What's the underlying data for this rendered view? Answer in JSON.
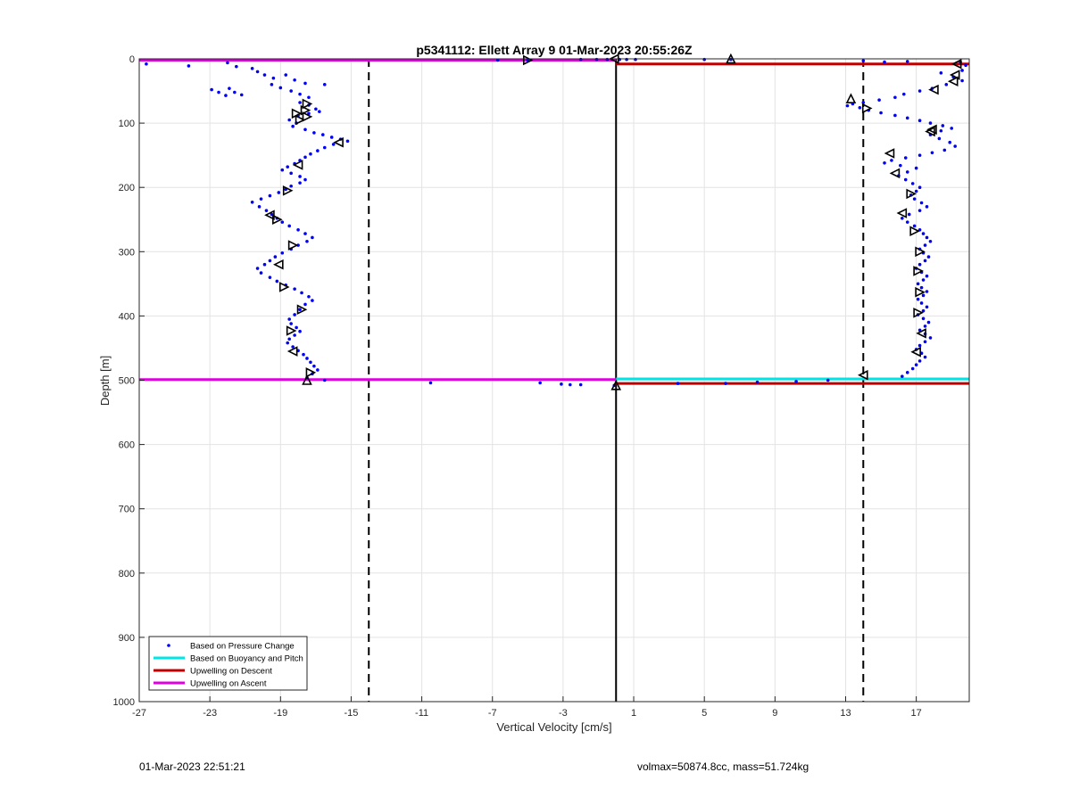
{
  "chart_data": {
    "type": "scatter",
    "title": "p5341112: Ellett Array 9 01-Mar-2023 20:55:26Z",
    "xlabel": "Vertical Velocity [cm/s]",
    "ylabel": "Depth [m]",
    "xlim": [
      -27,
      20
    ],
    "ylim": [
      0,
      1000
    ],
    "y_reversed": true,
    "grid": true,
    "x_ticks": [
      -27,
      -23,
      -19,
      -15,
      -11,
      -7,
      -3,
      1,
      5,
      9,
      13,
      17
    ],
    "x_tick_labels": [
      "-27",
      "-23",
      "-19",
      "-15",
      "-11",
      "-7",
      "-3",
      "1",
      "5",
      "9",
      "13",
      "17"
    ],
    "y_ticks": [
      0,
      100,
      200,
      300,
      400,
      500,
      600,
      700,
      800,
      900,
      1000
    ],
    "y_tick_labels": [
      "0",
      "100",
      "200",
      "300",
      "400",
      "500",
      "600",
      "700",
      "800",
      "900",
      "1000"
    ],
    "legend": {
      "position": "bottom-left",
      "entries": [
        {
          "label": "Based on Pressure Change",
          "style": "dot",
          "color": "#0000ff"
        },
        {
          "label": "Based on Buoyancy and Pitch",
          "style": "line",
          "color": "#00e5e5"
        },
        {
          "label": "Upwelling on Descent",
          "style": "line",
          "color": "#c00000"
        },
        {
          "label": "Upwelling on Ascent",
          "style": "line",
          "color": "#e000e0"
        }
      ]
    },
    "reference_lines": [
      {
        "x": -14,
        "style": "dashed",
        "color": "#000000"
      },
      {
        "x": 14,
        "style": "dashed",
        "color": "#000000"
      },
      {
        "x": 0,
        "style": "solid",
        "color": "#000000"
      }
    ],
    "series": [
      {
        "name": "Based on Pressure Change",
        "style": "dot",
        "color": "#0000ff",
        "points": [
          [
            -26.6,
            8
          ],
          [
            -24.2,
            11
          ],
          [
            -22,
            6
          ],
          [
            -21.5,
            12
          ],
          [
            -20.6,
            15
          ],
          [
            -20.3,
            20
          ],
          [
            -19.9,
            25
          ],
          [
            -19.4,
            30
          ],
          [
            -18.7,
            25
          ],
          [
            -18.2,
            33
          ],
          [
            -17.6,
            38
          ],
          [
            -16.5,
            40
          ],
          [
            -22.9,
            48
          ],
          [
            -22.5,
            52
          ],
          [
            -22.1,
            57
          ],
          [
            -21.9,
            46
          ],
          [
            -21.6,
            52
          ],
          [
            -21.2,
            56
          ],
          [
            -19.5,
            40
          ],
          [
            -19.0,
            45
          ],
          [
            -18.4,
            50
          ],
          [
            -17.9,
            55
          ],
          [
            -17.4,
            60
          ],
          [
            -17.9,
            68
          ],
          [
            -17.4,
            72
          ],
          [
            -17.0,
            78
          ],
          [
            -16.8,
            82
          ],
          [
            -17.4,
            85
          ],
          [
            -18.0,
            88
          ],
          [
            -18.5,
            95
          ],
          [
            -18.1,
            100
          ],
          [
            -18.3,
            105
          ],
          [
            -17.6,
            110
          ],
          [
            -17.1,
            115
          ],
          [
            -16.6,
            118
          ],
          [
            -16.1,
            122
          ],
          [
            -15.6,
            125
          ],
          [
            -15.2,
            128
          ],
          [
            -16.0,
            133
          ],
          [
            -16.5,
            138
          ],
          [
            -16.9,
            143
          ],
          [
            -17.3,
            148
          ],
          [
            -17.6,
            153
          ],
          [
            -17.9,
            158
          ],
          [
            -18.2,
            163
          ],
          [
            -18.6,
            168
          ],
          [
            -18.9,
            173
          ],
          [
            -18.4,
            178
          ],
          [
            -17.9,
            183
          ],
          [
            -17.6,
            188
          ],
          [
            -17.9,
            193
          ],
          [
            -18.4,
            198
          ],
          [
            -18.7,
            203
          ],
          [
            -19.1,
            208
          ],
          [
            -19.6,
            213
          ],
          [
            -20.1,
            218
          ],
          [
            -20.6,
            223
          ],
          [
            -20.2,
            230
          ],
          [
            -19.8,
            236
          ],
          [
            -19.5,
            242
          ],
          [
            -19.2,
            248
          ],
          [
            -18.9,
            254
          ],
          [
            -18.5,
            260
          ],
          [
            -18.0,
            266
          ],
          [
            -17.6,
            272
          ],
          [
            -17.2,
            278
          ],
          [
            -17.5,
            284
          ],
          [
            -18.0,
            290
          ],
          [
            -18.4,
            296
          ],
          [
            -18.9,
            302
          ],
          [
            -19.3,
            308
          ],
          [
            -19.6,
            314
          ],
          [
            -19.9,
            320
          ],
          [
            -20.3,
            326
          ],
          [
            -20.1,
            333
          ],
          [
            -19.6,
            340
          ],
          [
            -19.2,
            346
          ],
          [
            -18.7,
            352
          ],
          [
            -18.2,
            358
          ],
          [
            -17.8,
            364
          ],
          [
            -17.4,
            370
          ],
          [
            -17.2,
            376
          ],
          [
            -17.6,
            382
          ],
          [
            -17.9,
            390
          ],
          [
            -18.2,
            398
          ],
          [
            -18.5,
            405
          ],
          [
            -18.4,
            412
          ],
          [
            -18.1,
            418
          ],
          [
            -17.9,
            424
          ],
          [
            -18.2,
            430
          ],
          [
            -18.5,
            436
          ],
          [
            -18.6,
            442
          ],
          [
            -18.3,
            448
          ],
          [
            -18.0,
            454
          ],
          [
            -17.7,
            460
          ],
          [
            -17.5,
            466
          ],
          [
            -17.3,
            472
          ],
          [
            -17.1,
            478
          ],
          [
            -16.9,
            484
          ],
          [
            -17.2,
            490
          ],
          [
            -17.5,
            496
          ],
          [
            -16.5,
            500
          ],
          [
            -10.5,
            504
          ],
          [
            -4.3,
            504
          ],
          [
            -3.1,
            506
          ],
          [
            -2.6,
            507
          ],
          [
            -2.0,
            507
          ],
          [
            -0.1,
            508
          ],
          [
            -6.7,
            2
          ],
          [
            -5.0,
            2
          ],
          [
            -2.0,
            1
          ],
          [
            -1.1,
            1
          ],
          [
            -0.5,
            1
          ],
          [
            0.2,
            1
          ],
          [
            0.6,
            1
          ],
          [
            1.1,
            1
          ],
          [
            5.0,
            1
          ],
          [
            6.5,
            1
          ],
          [
            3.5,
            505
          ],
          [
            6.2,
            505
          ],
          [
            8.0,
            503
          ],
          [
            10.2,
            502
          ],
          [
            12.0,
            500
          ],
          [
            14.0,
            3
          ],
          [
            15.2,
            5
          ],
          [
            16.5,
            4
          ],
          [
            19.5,
            5
          ],
          [
            19.8,
            10
          ],
          [
            19.6,
            18
          ],
          [
            18.4,
            22
          ],
          [
            19.1,
            28
          ],
          [
            19.6,
            34
          ],
          [
            18.7,
            40
          ],
          [
            17.9,
            46
          ],
          [
            17.2,
            50
          ],
          [
            16.3,
            55
          ],
          [
            15.8,
            60
          ],
          [
            14.9,
            64
          ],
          [
            14.0,
            68
          ],
          [
            13.4,
            70
          ],
          [
            13.1,
            73
          ],
          [
            13.8,
            76
          ],
          [
            14.3,
            80
          ],
          [
            15.0,
            84
          ],
          [
            15.8,
            88
          ],
          [
            16.5,
            92
          ],
          [
            17.2,
            96
          ],
          [
            17.8,
            100
          ],
          [
            18.5,
            104
          ],
          [
            19.0,
            108
          ],
          [
            18.4,
            112
          ],
          [
            17.8,
            118
          ],
          [
            18.3,
            124
          ],
          [
            18.9,
            130
          ],
          [
            19.2,
            136
          ],
          [
            18.6,
            142
          ],
          [
            17.9,
            146
          ],
          [
            17.2,
            150
          ],
          [
            16.4,
            154
          ],
          [
            15.6,
            158
          ],
          [
            15.2,
            162
          ],
          [
            16.1,
            166
          ],
          [
            17.0,
            170
          ],
          [
            16.5,
            176
          ],
          [
            16.0,
            182
          ],
          [
            16.4,
            188
          ],
          [
            16.8,
            194
          ],
          [
            17.2,
            200
          ],
          [
            17.0,
            206
          ],
          [
            16.7,
            212
          ],
          [
            16.9,
            218
          ],
          [
            17.3,
            224
          ],
          [
            17.6,
            230
          ],
          [
            17.2,
            236
          ],
          [
            16.6,
            242
          ],
          [
            16.2,
            248
          ],
          [
            16.5,
            254
          ],
          [
            16.9,
            260
          ],
          [
            17.2,
            266
          ],
          [
            17.4,
            272
          ],
          [
            17.6,
            278
          ],
          [
            17.8,
            284
          ],
          [
            17.5,
            290
          ],
          [
            17.2,
            296
          ],
          [
            17.4,
            302
          ],
          [
            17.7,
            308
          ],
          [
            17.5,
            314
          ],
          [
            17.2,
            320
          ],
          [
            17.0,
            326
          ],
          [
            17.3,
            332
          ],
          [
            17.6,
            338
          ],
          [
            17.4,
            344
          ],
          [
            17.1,
            350
          ],
          [
            17.3,
            356
          ],
          [
            17.6,
            362
          ],
          [
            17.4,
            368
          ],
          [
            17.1,
            374
          ],
          [
            17.3,
            380
          ],
          [
            17.6,
            386
          ],
          [
            17.4,
            392
          ],
          [
            17.1,
            398
          ],
          [
            17.4,
            404
          ],
          [
            17.7,
            410
          ],
          [
            17.5,
            416
          ],
          [
            17.2,
            422
          ],
          [
            17.5,
            428
          ],
          [
            17.8,
            434
          ],
          [
            17.5,
            440
          ],
          [
            17.2,
            446
          ],
          [
            17.0,
            452
          ],
          [
            17.3,
            458
          ],
          [
            17.5,
            464
          ],
          [
            17.2,
            470
          ],
          [
            17.0,
            476
          ],
          [
            16.8,
            482
          ],
          [
            16.5,
            488
          ],
          [
            16.2,
            494
          ]
        ]
      },
      {
        "name": "Based on Buoyancy and Pitch",
        "style": "line",
        "color": "#00e5e5",
        "segments": [
          {
            "x": [
              0,
              20
            ],
            "y": [
              498,
              498
            ]
          }
        ]
      },
      {
        "name": "Upwelling on Descent",
        "style": "line",
        "color": "#c00000",
        "segments": [
          {
            "x": [
              0,
              20
            ],
            "y": [
              8,
              8
            ]
          },
          {
            "x": [
              0,
              20
            ],
            "y": [
              505,
              505
            ]
          }
        ]
      },
      {
        "name": "Upwelling on Ascent",
        "style": "line",
        "color": "#e000e0",
        "segments": [
          {
            "x": [
              -27,
              0
            ],
            "y": [
              2,
              2
            ]
          },
          {
            "x": [
              -27,
              0
            ],
            "y": [
              499,
              499
            ]
          }
        ]
      },
      {
        "style": "triangle-marker",
        "color": "#000000",
        "points": [
          [
            -5.0,
            2,
            "right"
          ],
          [
            -0.1,
            0,
            "left"
          ],
          [
            6.5,
            0,
            "up"
          ],
          [
            19.3,
            8,
            "left"
          ],
          [
            19.2,
            25,
            "left"
          ],
          [
            19.1,
            35,
            "left"
          ],
          [
            18.0,
            48,
            "left"
          ],
          [
            13.3,
            62,
            "up"
          ],
          [
            14.2,
            77,
            "right"
          ],
          [
            17.9,
            110,
            "left"
          ],
          [
            17.8,
            113,
            "left"
          ],
          [
            15.5,
            147,
            "left"
          ],
          [
            15.8,
            178,
            "left"
          ],
          [
            16.7,
            210,
            "right"
          ],
          [
            16.2,
            240,
            "left"
          ],
          [
            16.9,
            268,
            "right"
          ],
          [
            17.2,
            300,
            "right"
          ],
          [
            17.1,
            330,
            "right"
          ],
          [
            17.2,
            363,
            "right"
          ],
          [
            17.1,
            395,
            "right"
          ],
          [
            17.3,
            427,
            "left"
          ],
          [
            17.0,
            456,
            "left"
          ],
          [
            14.0,
            492,
            "left"
          ],
          [
            0.0,
            508,
            "up"
          ],
          [
            -17.5,
            70,
            "right"
          ],
          [
            -17.6,
            80,
            "right"
          ],
          [
            -18.1,
            85,
            "right"
          ],
          [
            -17.9,
            95,
            "right"
          ],
          [
            -17.5,
            90,
            "right"
          ],
          [
            -15.7,
            130,
            "left"
          ],
          [
            -18.0,
            165,
            "left"
          ],
          [
            -18.6,
            205,
            "right"
          ],
          [
            -19.6,
            243,
            "left"
          ],
          [
            -19.2,
            250,
            "right"
          ],
          [
            -18.3,
            290,
            "right"
          ],
          [
            -19.1,
            320,
            "left"
          ],
          [
            -18.8,
            355,
            "right"
          ],
          [
            -17.8,
            390,
            "right"
          ],
          [
            -18.4,
            423,
            "right"
          ],
          [
            -18.3,
            455,
            "left"
          ],
          [
            -17.3,
            488,
            "right"
          ],
          [
            -17.5,
            500,
            "up"
          ]
        ]
      }
    ]
  },
  "footer": {
    "left": "01-Mar-2023 22:51:21",
    "right": "volmax=50874.8cc, mass=51.724kg"
  }
}
